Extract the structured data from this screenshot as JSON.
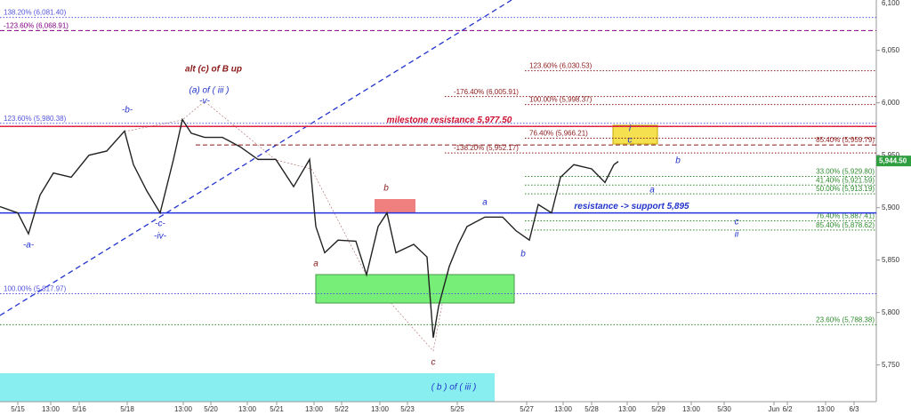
{
  "chart_data": {
    "type": "line",
    "x": [
      0,
      5,
      8,
      11.25,
      15,
      20,
      25,
      30,
      35,
      37.5,
      41.25,
      45,
      48.75,
      51.25,
      53.75,
      57.5,
      62.5,
      67.5,
      72.5,
      77.5,
      82.5,
      87,
      88.75,
      91.25,
      95,
      100,
      103,
      106.25,
      108.75,
      111.25,
      116.25,
      120,
      121.75,
      123.25,
      126.25,
      128.75,
      131.25,
      136.25,
      141.25,
      145,
      148.75,
      151.25,
      155,
      157.5,
      161.25,
      166.25,
      170,
      172.5,
      173.75
    ],
    "values": [
      5901,
      5895,
      5875,
      5912,
      5933,
      5929,
      5950,
      5954,
      5973,
      5941,
      5916,
      5895,
      5946,
      5984,
      5971,
      5967,
      5967,
      5958,
      5946,
      5946,
      5920,
      5946,
      5882,
      5857,
      5869,
      5868,
      5836,
      5882,
      5895,
      5857,
      5865,
      5853,
      5776,
      5806,
      5844,
      5865,
      5882,
      5891,
      5891,
      5878,
      5869,
      5903,
      5895,
      5929,
      5941,
      5937,
      5924,
      5941,
      5944
    ],
    "color": "#222222",
    "xlim": [
      0,
      246.25
    ],
    "ylim": [
      5715,
      6098
    ],
    "yticks": [
      {
        "value": 5750,
        "label": "5,750"
      },
      {
        "value": 5800,
        "label": "5,800"
      },
      {
        "value": 5850,
        "label": "5,850"
      },
      {
        "value": 5900,
        "label": "5,900"
      },
      {
        "value": 5950,
        "label": "5,950"
      },
      {
        "value": 6000,
        "label": "6,000"
      },
      {
        "value": 6050,
        "label": "6,050"
      },
      {
        "value": 6100,
        "label": "6,100"
      }
    ],
    "xticks": [
      {
        "value": 5,
        "label": "5/15"
      },
      {
        "value": 14.25,
        "label": "13:00"
      },
      {
        "value": 22.25,
        "label": "5/16"
      },
      {
        "value": 35.75,
        "label": "5/18"
      },
      {
        "value": 51.5,
        "label": "13:00"
      },
      {
        "value": 59.25,
        "label": "5/20"
      },
      {
        "value": 69.5,
        "label": "13:00"
      },
      {
        "value": 77.75,
        "label": "5/21"
      },
      {
        "value": 88.25,
        "label": "13:00"
      },
      {
        "value": 96,
        "label": "5/22"
      },
      {
        "value": 106.75,
        "label": "13:00"
      },
      {
        "value": 114.5,
        "label": "5/23"
      },
      {
        "value": 128.5,
        "label": "5/25"
      },
      {
        "value": 148,
        "label": "5/27"
      },
      {
        "value": 158.25,
        "label": "13:00"
      },
      {
        "value": 166.25,
        "label": "5/28"
      },
      {
        "value": 176.25,
        "label": "13:00"
      },
      {
        "value": 185,
        "label": "5/29"
      },
      {
        "value": 194.25,
        "label": "13:00"
      },
      {
        "value": 203.5,
        "label": "5/30"
      },
      {
        "value": 217.5,
        "label": "Jun"
      },
      {
        "value": 221.25,
        "label": "6/2"
      },
      {
        "value": 232,
        "label": "13:00"
      },
      {
        "value": 240,
        "label": "6/3"
      }
    ],
    "levels": [
      {
        "label": "138.20% (6,081.40)",
        "value": 6081.4,
        "color": "#5555dd",
        "style": "dotted"
      },
      {
        "label": "-123.60% (6,068.91)",
        "value": 6068.91,
        "color": "#800080",
        "style": "dashed"
      },
      {
        "label": "123.60% (5,980.38)",
        "value": 5980.38,
        "color": "#5555dd",
        "style": "dotted"
      },
      {
        "label": "100.00% (5,817.97)",
        "value": 5817.97,
        "color": "#5555dd",
        "style": "dotted"
      },
      {
        "label": "123.60% (6,030.53)",
        "value": 6030.53,
        "color": "#8b1a1a",
        "style": "dotted"
      },
      {
        "label": "-176.40% (6,005.91)",
        "value": 6005.91,
        "color": "#8b1a1a",
        "style": "dotted"
      },
      {
        "label": "100.00% (5,998.37)",
        "value": 5998.37,
        "color": "#8b1a1a",
        "style": "dotted"
      },
      {
        "label": "76.40% (5,966.21)",
        "value": 5966.21,
        "color": "#8b1a1a",
        "style": "dotted"
      },
      {
        "label": "85.40% (5,959.79)",
        "value": 5959.79,
        "color": "#8b1a1a",
        "style": "dashed"
      },
      {
        "label": "-138.20% (5,952.17)",
        "value": 5952.17,
        "color": "#8b1a1a",
        "style": "dotted"
      },
      {
        "label": "33.00% (5,929.80)",
        "value": 5929.8,
        "color": "#2e8b2e",
        "style": "dotted"
      },
      {
        "label": "41.40% (5,921.59)",
        "value": 5921.59,
        "color": "#2e8b2e",
        "style": "dotted"
      },
      {
        "label": "50.00% (5,913.19)",
        "value": 5913.19,
        "color": "#2e8b2e",
        "style": "dotted"
      },
      {
        "label": "76.40% (5,887.41)",
        "value": 5887.41,
        "color": "#2e8b2e",
        "style": "dotted"
      },
      {
        "label": "85.40% (5,878.62)",
        "value": 5878.62,
        "color": "#2e8b2e",
        "style": "dotted"
      },
      {
        "label": "23.60% (5,788.38)",
        "value": 5788.38,
        "color": "#2e8b2e",
        "style": "dotted"
      }
    ],
    "key_levels": [
      {
        "label": "milestone resistance 5,977.50",
        "value": 5977.5,
        "color": "#dd2244"
      },
      {
        "label": "resistance -> support 5,895",
        "value": 5895,
        "color": "#2233dd"
      }
    ],
    "last_price": {
      "value": 5944.5,
      "label": "5,944.50"
    },
    "annotations": [
      "alt (c) of B up",
      "(a) of ( iii )",
      "-v-",
      "-b-",
      "-c-",
      "-iv-",
      "-a-",
      "a",
      "b",
      "c",
      "a",
      "b",
      "i",
      "c",
      "b",
      "a",
      "c",
      "ii",
      "( b ) of ( iii )"
    ]
  }
}
